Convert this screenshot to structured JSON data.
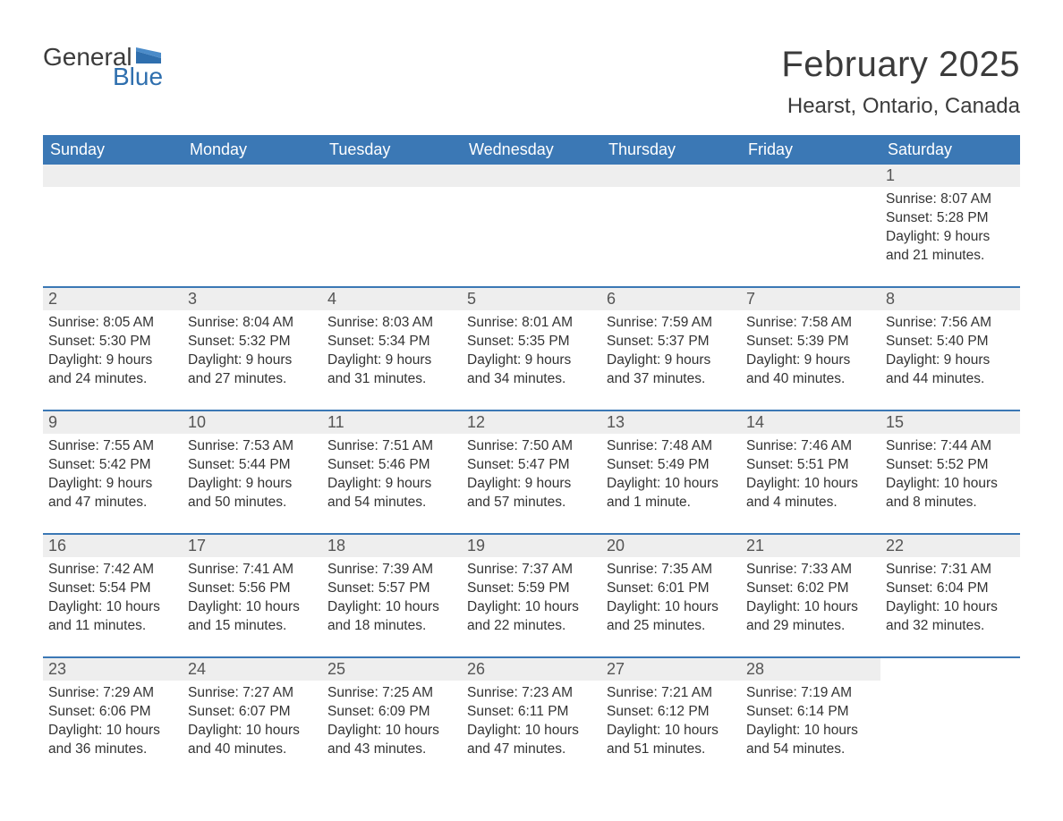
{
  "logo": {
    "general": "General",
    "blue": "Blue",
    "flag_color": "#2f6fae"
  },
  "header": {
    "month_title": "February 2025",
    "location": "Hearst, Ontario, Canada"
  },
  "colors": {
    "header_bg": "#3b78b5",
    "header_text": "#ffffff",
    "week_divider": "#3b78b5",
    "daynum_bg": "#eeeeee",
    "daynum_text": "#555555",
    "body_text": "#333333",
    "page_bg": "#ffffff",
    "logo_blue": "#2f6fae",
    "logo_gray": "#3b3b3b"
  },
  "typography": {
    "month_title_fontsize": 40,
    "location_fontsize": 24,
    "dow_fontsize": 18,
    "daynum_fontsize": 18,
    "body_fontsize": 15.5,
    "font_family": "Arial"
  },
  "days_of_week": [
    "Sunday",
    "Monday",
    "Tuesday",
    "Wednesday",
    "Thursday",
    "Friday",
    "Saturday"
  ],
  "weeks": [
    {
      "days": [
        null,
        null,
        null,
        null,
        null,
        null,
        {
          "num": "1",
          "sunrise": "Sunrise: 8:07 AM",
          "sunset": "Sunset: 5:28 PM",
          "daylight1": "Daylight: 9 hours",
          "daylight2": "and 21 minutes."
        }
      ]
    },
    {
      "days": [
        {
          "num": "2",
          "sunrise": "Sunrise: 8:05 AM",
          "sunset": "Sunset: 5:30 PM",
          "daylight1": "Daylight: 9 hours",
          "daylight2": "and 24 minutes."
        },
        {
          "num": "3",
          "sunrise": "Sunrise: 8:04 AM",
          "sunset": "Sunset: 5:32 PM",
          "daylight1": "Daylight: 9 hours",
          "daylight2": "and 27 minutes."
        },
        {
          "num": "4",
          "sunrise": "Sunrise: 8:03 AM",
          "sunset": "Sunset: 5:34 PM",
          "daylight1": "Daylight: 9 hours",
          "daylight2": "and 31 minutes."
        },
        {
          "num": "5",
          "sunrise": "Sunrise: 8:01 AM",
          "sunset": "Sunset: 5:35 PM",
          "daylight1": "Daylight: 9 hours",
          "daylight2": "and 34 minutes."
        },
        {
          "num": "6",
          "sunrise": "Sunrise: 7:59 AM",
          "sunset": "Sunset: 5:37 PM",
          "daylight1": "Daylight: 9 hours",
          "daylight2": "and 37 minutes."
        },
        {
          "num": "7",
          "sunrise": "Sunrise: 7:58 AM",
          "sunset": "Sunset: 5:39 PM",
          "daylight1": "Daylight: 9 hours",
          "daylight2": "and 40 minutes."
        },
        {
          "num": "8",
          "sunrise": "Sunrise: 7:56 AM",
          "sunset": "Sunset: 5:40 PM",
          "daylight1": "Daylight: 9 hours",
          "daylight2": "and 44 minutes."
        }
      ]
    },
    {
      "days": [
        {
          "num": "9",
          "sunrise": "Sunrise: 7:55 AM",
          "sunset": "Sunset: 5:42 PM",
          "daylight1": "Daylight: 9 hours",
          "daylight2": "and 47 minutes."
        },
        {
          "num": "10",
          "sunrise": "Sunrise: 7:53 AM",
          "sunset": "Sunset: 5:44 PM",
          "daylight1": "Daylight: 9 hours",
          "daylight2": "and 50 minutes."
        },
        {
          "num": "11",
          "sunrise": "Sunrise: 7:51 AM",
          "sunset": "Sunset: 5:46 PM",
          "daylight1": "Daylight: 9 hours",
          "daylight2": "and 54 minutes."
        },
        {
          "num": "12",
          "sunrise": "Sunrise: 7:50 AM",
          "sunset": "Sunset: 5:47 PM",
          "daylight1": "Daylight: 9 hours",
          "daylight2": "and 57 minutes."
        },
        {
          "num": "13",
          "sunrise": "Sunrise: 7:48 AM",
          "sunset": "Sunset: 5:49 PM",
          "daylight1": "Daylight: 10 hours",
          "daylight2": "and 1 minute."
        },
        {
          "num": "14",
          "sunrise": "Sunrise: 7:46 AM",
          "sunset": "Sunset: 5:51 PM",
          "daylight1": "Daylight: 10 hours",
          "daylight2": "and 4 minutes."
        },
        {
          "num": "15",
          "sunrise": "Sunrise: 7:44 AM",
          "sunset": "Sunset: 5:52 PM",
          "daylight1": "Daylight: 10 hours",
          "daylight2": "and 8 minutes."
        }
      ]
    },
    {
      "days": [
        {
          "num": "16",
          "sunrise": "Sunrise: 7:42 AM",
          "sunset": "Sunset: 5:54 PM",
          "daylight1": "Daylight: 10 hours",
          "daylight2": "and 11 minutes."
        },
        {
          "num": "17",
          "sunrise": "Sunrise: 7:41 AM",
          "sunset": "Sunset: 5:56 PM",
          "daylight1": "Daylight: 10 hours",
          "daylight2": "and 15 minutes."
        },
        {
          "num": "18",
          "sunrise": "Sunrise: 7:39 AM",
          "sunset": "Sunset: 5:57 PM",
          "daylight1": "Daylight: 10 hours",
          "daylight2": "and 18 minutes."
        },
        {
          "num": "19",
          "sunrise": "Sunrise: 7:37 AM",
          "sunset": "Sunset: 5:59 PM",
          "daylight1": "Daylight: 10 hours",
          "daylight2": "and 22 minutes."
        },
        {
          "num": "20",
          "sunrise": "Sunrise: 7:35 AM",
          "sunset": "Sunset: 6:01 PM",
          "daylight1": "Daylight: 10 hours",
          "daylight2": "and 25 minutes."
        },
        {
          "num": "21",
          "sunrise": "Sunrise: 7:33 AM",
          "sunset": "Sunset: 6:02 PM",
          "daylight1": "Daylight: 10 hours",
          "daylight2": "and 29 minutes."
        },
        {
          "num": "22",
          "sunrise": "Sunrise: 7:31 AM",
          "sunset": "Sunset: 6:04 PM",
          "daylight1": "Daylight: 10 hours",
          "daylight2": "and 32 minutes."
        }
      ]
    },
    {
      "days": [
        {
          "num": "23",
          "sunrise": "Sunrise: 7:29 AM",
          "sunset": "Sunset: 6:06 PM",
          "daylight1": "Daylight: 10 hours",
          "daylight2": "and 36 minutes."
        },
        {
          "num": "24",
          "sunrise": "Sunrise: 7:27 AM",
          "sunset": "Sunset: 6:07 PM",
          "daylight1": "Daylight: 10 hours",
          "daylight2": "and 40 minutes."
        },
        {
          "num": "25",
          "sunrise": "Sunrise: 7:25 AM",
          "sunset": "Sunset: 6:09 PM",
          "daylight1": "Daylight: 10 hours",
          "daylight2": "and 43 minutes."
        },
        {
          "num": "26",
          "sunrise": "Sunrise: 7:23 AM",
          "sunset": "Sunset: 6:11 PM",
          "daylight1": "Daylight: 10 hours",
          "daylight2": "and 47 minutes."
        },
        {
          "num": "27",
          "sunrise": "Sunrise: 7:21 AM",
          "sunset": "Sunset: 6:12 PM",
          "daylight1": "Daylight: 10 hours",
          "daylight2": "and 51 minutes."
        },
        {
          "num": "28",
          "sunrise": "Sunrise: 7:19 AM",
          "sunset": "Sunset: 6:14 PM",
          "daylight1": "Daylight: 10 hours",
          "daylight2": "and 54 minutes."
        },
        null
      ]
    }
  ]
}
